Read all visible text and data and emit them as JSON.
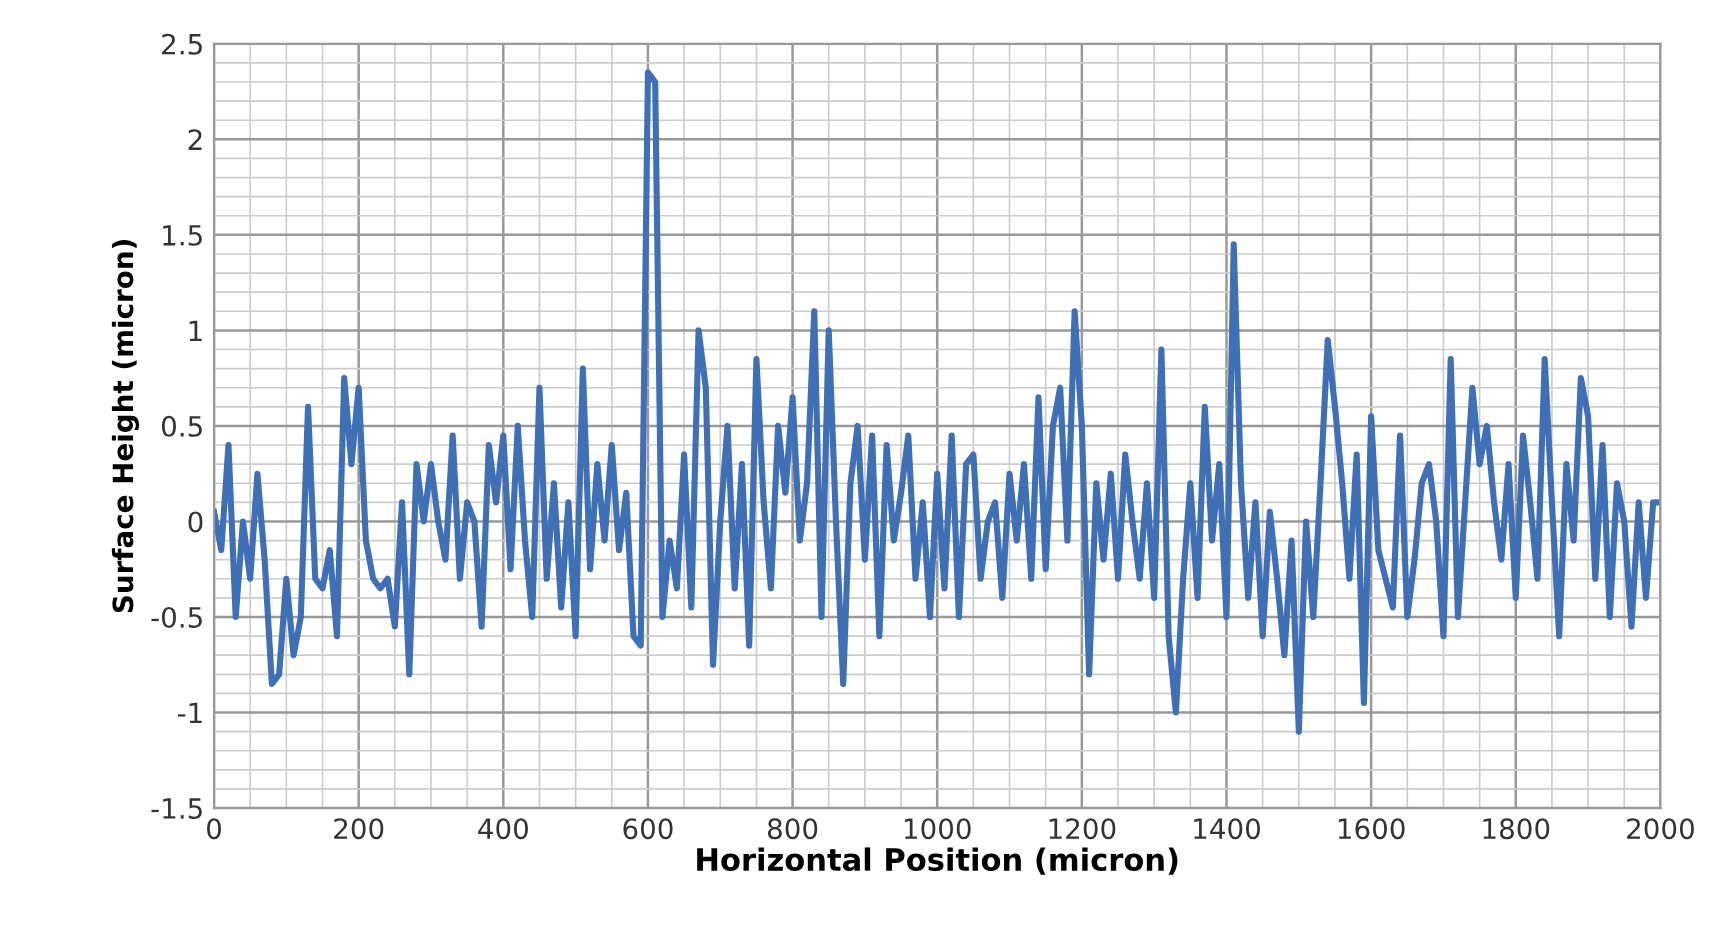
{
  "chart_data": {
    "type": "line",
    "xlabel": "Horizontal Position (micron)",
    "ylabel": "Surface Height (micron)",
    "xlim": [
      0,
      2000
    ],
    "xticks": [
      0,
      200,
      400,
      600,
      800,
      1000,
      1200,
      1400,
      1600,
      1800,
      2000
    ],
    "ylim": [
      -1.5,
      2.5
    ],
    "yticks": [
      -1.5,
      -1,
      -0.5,
      0,
      0.5,
      1,
      1.5,
      2,
      2.5
    ],
    "grid": true,
    "marker": "none",
    "line_style": "solid",
    "series": [
      {
        "color": "#3f6fb5",
        "x": [
          0,
          10,
          20,
          30,
          40,
          50,
          60,
          70,
          80,
          90,
          100,
          110,
          120,
          130,
          140,
          150,
          160,
          170,
          180,
          190,
          200,
          210,
          220,
          230,
          240,
          250,
          260,
          270,
          280,
          290,
          300,
          310,
          320,
          330,
          340,
          350,
          360,
          370,
          380,
          390,
          400,
          410,
          420,
          430,
          440,
          450,
          460,
          470,
          480,
          490,
          500,
          510,
          520,
          530,
          540,
          550,
          560,
          570,
          580,
          590,
          600,
          610,
          620,
          630,
          640,
          650,
          660,
          670,
          680,
          690,
          700,
          710,
          720,
          730,
          740,
          750,
          760,
          770,
          780,
          790,
          800,
          810,
          820,
          830,
          840,
          850,
          860,
          870,
          880,
          890,
          900,
          910,
          920,
          930,
          940,
          950,
          960,
          970,
          980,
          990,
          1000,
          1010,
          1020,
          1030,
          1040,
          1050,
          1060,
          1070,
          1080,
          1090,
          1100,
          1110,
          1120,
          1130,
          1140,
          1150,
          1160,
          1170,
          1180,
          1190,
          1200,
          1210,
          1220,
          1230,
          1240,
          1250,
          1260,
          1270,
          1280,
          1290,
          1300,
          1310,
          1320,
          1330,
          1340,
          1350,
          1360,
          1370,
          1380,
          1390,
          1400,
          1410,
          1420,
          1430,
          1440,
          1450,
          1460,
          1470,
          1480,
          1490,
          1500,
          1510,
          1520,
          1530,
          1540,
          1550,
          1560,
          1570,
          1580,
          1590,
          1600,
          1610,
          1620,
          1630,
          1640,
          1650,
          1660,
          1670,
          1680,
          1690,
          1700,
          1710,
          1720,
          1730,
          1740,
          1750,
          1760,
          1770,
          1780,
          1790,
          1800,
          1810,
          1820,
          1830,
          1840,
          1850,
          1860,
          1870,
          1880,
          1890,
          1900,
          1910,
          1920,
          1930,
          1940,
          1950,
          1960,
          1970,
          1980,
          1990,
          2000
        ],
        "values": [
          0.05,
          -0.15,
          0.4,
          -0.5,
          0.0,
          -0.3,
          0.25,
          -0.2,
          -0.85,
          -0.8,
          -0.3,
          -0.7,
          -0.5,
          0.6,
          -0.3,
          -0.35,
          -0.15,
          -0.6,
          0.75,
          0.3,
          0.7,
          -0.1,
          -0.3,
          -0.35,
          -0.3,
          -0.55,
          0.1,
          -0.8,
          0.3,
          0.0,
          0.3,
          0.0,
          -0.2,
          0.45,
          -0.3,
          0.1,
          0.0,
          -0.55,
          0.4,
          0.1,
          0.45,
          -0.25,
          0.5,
          -0.1,
          -0.5,
          0.7,
          -0.3,
          0.2,
          -0.45,
          0.1,
          -0.6,
          0.8,
          -0.25,
          0.3,
          -0.1,
          0.4,
          -0.15,
          0.15,
          -0.6,
          -0.65,
          2.35,
          2.3,
          -0.5,
          -0.1,
          -0.35,
          0.35,
          -0.45,
          1.0,
          0.7,
          -0.75,
          0.0,
          0.5,
          -0.35,
          0.3,
          -0.65,
          0.85,
          0.1,
          -0.35,
          0.5,
          0.15,
          0.65,
          -0.1,
          0.2,
          1.1,
          -0.5,
          1.0,
          0.0,
          -0.85,
          0.2,
          0.5,
          -0.2,
          0.45,
          -0.6,
          0.4,
          -0.1,
          0.15,
          0.45,
          -0.3,
          0.1,
          -0.5,
          0.25,
          -0.35,
          0.45,
          -0.5,
          0.3,
          0.35,
          -0.3,
          0.0,
          0.1,
          -0.4,
          0.25,
          -0.1,
          0.3,
          -0.3,
          0.65,
          -0.25,
          0.5,
          0.7,
          -0.1,
          1.1,
          0.5,
          -0.8,
          0.2,
          -0.2,
          0.25,
          -0.3,
          0.35,
          0.0,
          -0.3,
          0.2,
          -0.4,
          0.9,
          -0.6,
          -1.0,
          -0.3,
          0.2,
          -0.4,
          0.6,
          -0.1,
          0.3,
          -0.5,
          1.45,
          0.2,
          -0.4,
          0.1,
          -0.6,
          0.05,
          -0.3,
          -0.7,
          -0.1,
          -1.1,
          0.0,
          -0.5,
          0.2,
          0.95,
          0.6,
          0.2,
          -0.3,
          0.35,
          -0.95,
          0.55,
          -0.15,
          -0.3,
          -0.45,
          0.45,
          -0.5,
          -0.2,
          0.2,
          0.3,
          0.0,
          -0.6,
          0.85,
          -0.5,
          0.1,
          0.7,
          0.3,
          0.5,
          0.1,
          -0.2,
          0.3,
          -0.4,
          0.45,
          0.1,
          -0.3,
          0.85,
          0.1,
          -0.6,
          0.3,
          -0.1,
          0.75,
          0.55,
          -0.3,
          0.4,
          -0.5,
          0.2,
          0.0,
          -0.55,
          0.1,
          -0.4,
          0.1,
          0.1
        ]
      }
    ]
  }
}
